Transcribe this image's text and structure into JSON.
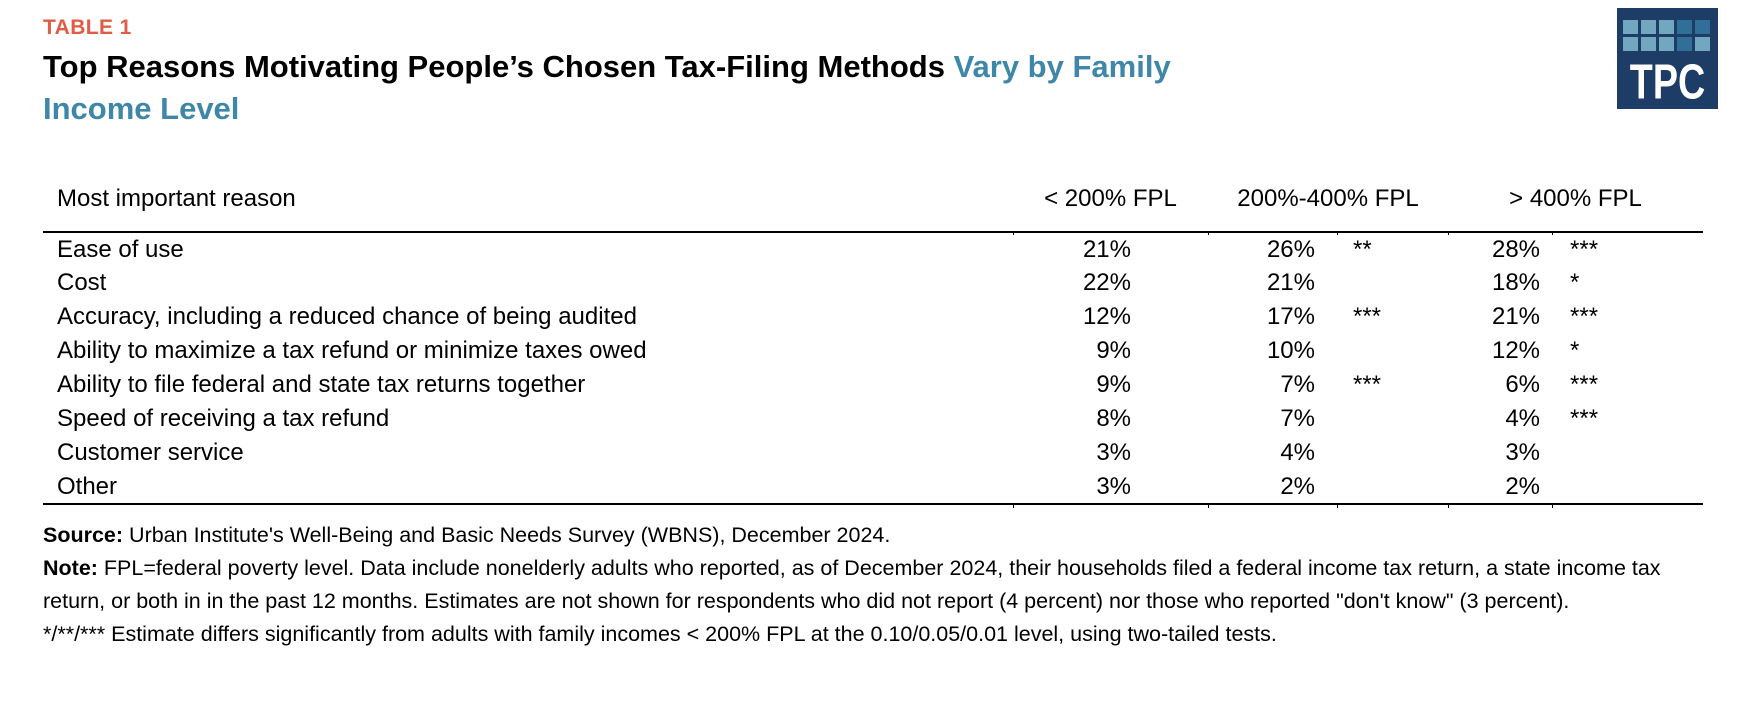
{
  "colors": {
    "accent_orange": "#E15C44",
    "accent_blue": "#3E87A9",
    "logo_navy": "#1E3D66",
    "logo_square_light": "#72A7C0",
    "logo_square_dark": "#316E98"
  },
  "header": {
    "eyebrow": "TABLE 1",
    "title_black": "Top Reasons Motivating People’s Chosen Tax-Filing Methods",
    "title_blue_line1": "Vary by Family",
    "title_blue_line2": "Income Level"
  },
  "logo": {
    "text": "TPC",
    "grid": [
      [
        "l",
        "l",
        "l",
        "d",
        "d"
      ],
      [
        "l",
        "l",
        "l",
        "d",
        "l"
      ]
    ]
  },
  "chart_data": {
    "type": "table",
    "title": "Top Reasons Motivating People’s Chosen Tax-Filing Methods Vary by Family Income Level",
    "row_header": "Most important reason",
    "columns": [
      "< 200% FPL",
      "200%-400% FPL",
      "> 400% FPL"
    ],
    "rows": [
      {
        "reason": "Ease of use",
        "lt200": "21%",
        "mid": "26%",
        "mid_sig": "**",
        "gt400": "28%",
        "gt400_sig": "***"
      },
      {
        "reason": "Cost",
        "lt200": "22%",
        "mid": "21%",
        "mid_sig": "",
        "gt400": "18%",
        "gt400_sig": "*"
      },
      {
        "reason": "Accuracy, including a reduced chance of being audited",
        "lt200": "12%",
        "mid": "17%",
        "mid_sig": "***",
        "gt400": "21%",
        "gt400_sig": "***"
      },
      {
        "reason": "Ability to maximize a tax refund or minimize taxes owed",
        "lt200": "9%",
        "mid": "10%",
        "mid_sig": "",
        "gt400": "12%",
        "gt400_sig": "*"
      },
      {
        "reason": "Ability to file federal and state tax returns together",
        "lt200": "9%",
        "mid": "7%",
        "mid_sig": "***",
        "gt400": "6%",
        "gt400_sig": "***"
      },
      {
        "reason": "Speed of receiving a tax refund",
        "lt200": "8%",
        "mid": "7%",
        "mid_sig": "",
        "gt400": "4%",
        "gt400_sig": "***"
      },
      {
        "reason": "Customer service",
        "lt200": "3%",
        "mid": "4%",
        "mid_sig": "",
        "gt400": "3%",
        "gt400_sig": ""
      },
      {
        "reason": "Other",
        "lt200": "3%",
        "mid": "2%",
        "mid_sig": "",
        "gt400": "2%",
        "gt400_sig": ""
      }
    ]
  },
  "notes": {
    "source_label": "Source:",
    "source_text": " Urban Institute's Well-Being and Basic Needs Survey (WBNS), December 2024.",
    "note_label": "Note:",
    "note_text": " FPL=federal poverty level. Data include nonelderly adults who reported, as of December 2024, their households filed a federal income tax return, a state income tax return, or both in in the past 12 months. Estimates are not shown for respondents who did not report (4 percent) nor those who reported \"don't know\" (3 percent).",
    "significance": "*/**/*** Estimate differs significantly from adults with family incomes < 200% FPL at the 0.10/0.05/0.01 level, using two-tailed tests."
  }
}
